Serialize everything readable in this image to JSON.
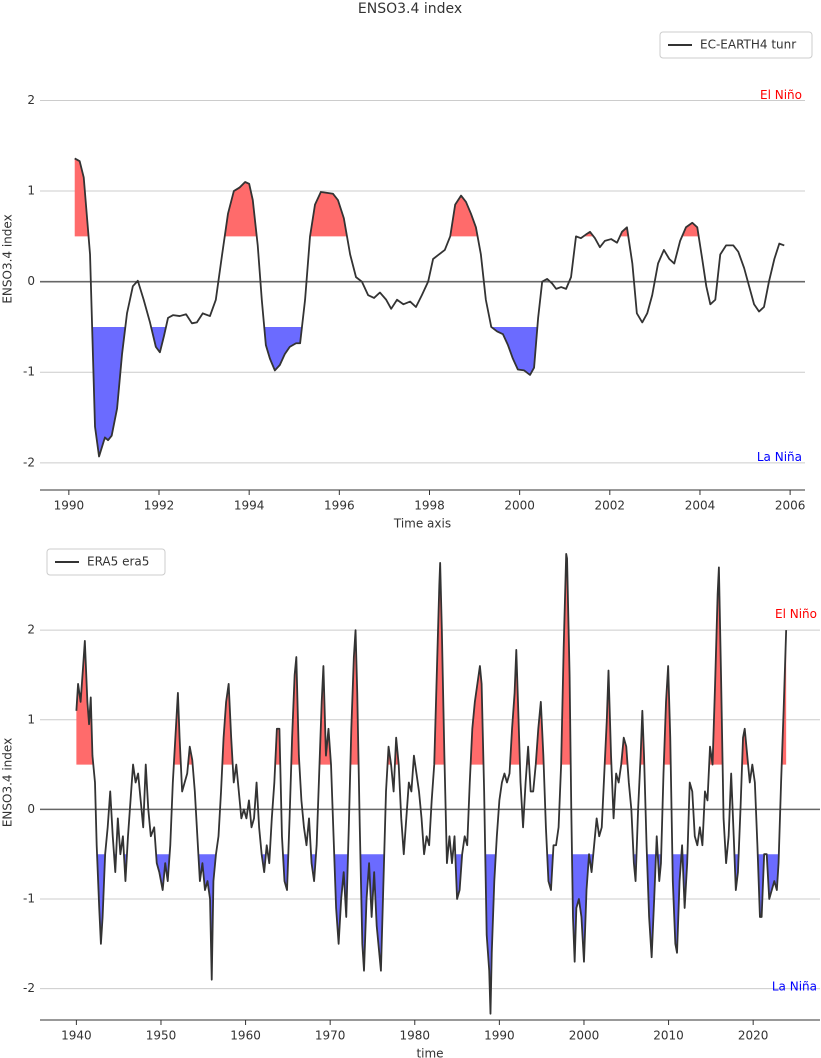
{
  "chart_data": [
    {
      "type": "line",
      "title": "ENSO3.4 index",
      "xlabel": "Time axis",
      "ylabel": "ENSO3.4 index",
      "xlim": [
        1989.36,
        2006.33
      ],
      "ylim": [
        -2.3,
        2.8
      ],
      "xticks": [
        1990,
        1992,
        1994,
        1996,
        1998,
        2000,
        2002,
        2004,
        2006
      ],
      "yticks": [
        -2,
        -1,
        0,
        1,
        2
      ],
      "grid": true,
      "legend": "upper right",
      "el_nino_threshold": 0.5,
      "la_nina_threshold": -0.5,
      "el_nino_color": "#ff6b6b",
      "la_nina_color": "#6b6bff",
      "annotations": [
        {
          "text": "El Niño",
          "color": "#ff0000"
        },
        {
          "text": "La Niña",
          "color": "#0000ff"
        }
      ],
      "x": [
        1990.13,
        1990.24,
        1990.33,
        1990.47,
        1990.58,
        1990.67,
        1990.8,
        1990.87,
        1990.95,
        1991.07,
        1991.18,
        1991.29,
        1991.42,
        1991.53,
        1991.66,
        1991.8,
        1991.93,
        1992.02,
        1992.11,
        1992.2,
        1992.31,
        1992.46,
        1992.6,
        1992.73,
        1992.84,
        1992.97,
        1993.13,
        1993.26,
        1993.4,
        1993.53,
        1993.66,
        1993.79,
        1993.91,
        1994.0,
        1994.08,
        1994.19,
        1994.28,
        1994.37,
        1994.46,
        1994.57,
        1994.68,
        1994.79,
        1994.9,
        1995.04,
        1995.13,
        1995.24,
        1995.35,
        1995.46,
        1995.59,
        1995.73,
        1995.86,
        1995.97,
        1996.1,
        1996.24,
        1996.37,
        1996.5,
        1996.64,
        1996.77,
        1996.9,
        1997.04,
        1997.15,
        1997.28,
        1997.42,
        1997.57,
        1997.7,
        1997.83,
        1997.97,
        1998.08,
        1998.21,
        1998.34,
        1998.46,
        1998.57,
        1998.7,
        1998.81,
        1998.92,
        1999.03,
        1999.14,
        1999.25,
        1999.37,
        1999.5,
        1999.63,
        1999.74,
        1999.85,
        1999.96,
        2000.1,
        2000.23,
        2000.32,
        2000.41,
        2000.5,
        2000.61,
        2000.72,
        2000.81,
        2000.92,
        2001.03,
        2001.14,
        2001.25,
        2001.36,
        2001.47,
        2001.56,
        2001.67,
        2001.78,
        2001.89,
        2002.03,
        2002.16,
        2002.27,
        2002.38,
        2002.5,
        2002.6,
        2002.72,
        2002.83,
        2002.94,
        2003.07,
        2003.2,
        2003.32,
        2003.43,
        2003.56,
        2003.69,
        2003.83,
        2003.94,
        2004.05,
        2004.14,
        2004.23,
        2004.34,
        2004.45,
        2004.58,
        2004.74,
        2004.85,
        2004.98,
        2005.09,
        2005.2,
        2005.31,
        2005.42,
        2005.53,
        2005.65,
        2005.76,
        2005.87
      ],
      "series": [
        {
          "name": "EC-EARTH4 tunr",
          "color": "#333333",
          "values": [
            1.36,
            1.33,
            1.15,
            0.3,
            -1.6,
            -1.93,
            -1.72,
            -1.75,
            -1.7,
            -1.4,
            -0.8,
            -0.35,
            -0.05,
            0.01,
            -0.2,
            -0.45,
            -0.72,
            -0.78,
            -0.6,
            -0.4,
            -0.37,
            -0.38,
            -0.36,
            -0.46,
            -0.45,
            -0.35,
            -0.38,
            -0.2,
            0.3,
            0.75,
            1.0,
            1.04,
            1.1,
            1.08,
            0.9,
            0.4,
            -0.2,
            -0.7,
            -0.85,
            -0.98,
            -0.92,
            -0.8,
            -0.72,
            -0.68,
            -0.68,
            -0.2,
            0.5,
            0.85,
            0.99,
            0.98,
            0.97,
            0.9,
            0.7,
            0.3,
            0.05,
            0.0,
            -0.15,
            -0.18,
            -0.12,
            -0.2,
            -0.3,
            -0.2,
            -0.25,
            -0.22,
            -0.28,
            -0.15,
            0.0,
            0.25,
            0.3,
            0.35,
            0.5,
            0.85,
            0.95,
            0.88,
            0.75,
            0.6,
            0.3,
            -0.2,
            -0.5,
            -0.55,
            -0.58,
            -0.7,
            -0.85,
            -0.97,
            -0.98,
            -1.03,
            -0.95,
            -0.4,
            0.0,
            0.03,
            -0.02,
            -0.08,
            -0.06,
            -0.08,
            0.05,
            0.5,
            0.48,
            0.52,
            0.55,
            0.48,
            0.38,
            0.45,
            0.47,
            0.43,
            0.55,
            0.6,
            0.2,
            -0.35,
            -0.45,
            -0.35,
            -0.15,
            0.2,
            0.35,
            0.25,
            0.2,
            0.45,
            0.6,
            0.65,
            0.6,
            0.25,
            -0.05,
            -0.25,
            -0.2,
            0.3,
            0.4,
            0.4,
            0.33,
            0.15,
            -0.05,
            -0.25,
            -0.33,
            -0.28,
            0.0,
            0.25,
            0.42,
            0.4
          ]
        }
      ]
    },
    {
      "type": "line",
      "xlabel": "time",
      "ylabel": "ENSO3.4 index",
      "xlim": [
        1935.7,
        2027.9
      ],
      "ylim": [
        -2.35,
        2.95
      ],
      "xticks": [
        1940,
        1950,
        1960,
        1970,
        1980,
        1990,
        2000,
        2010,
        2020
      ],
      "yticks": [
        -2,
        -1,
        0,
        1,
        2
      ],
      "grid": true,
      "legend": "upper left",
      "el_nino_threshold": 0.5,
      "la_nina_threshold": -0.5,
      "el_nino_color": "#ff6b6b",
      "la_nina_color": "#6b6bff",
      "annotations": [
        {
          "text": "El Niño",
          "color": "#ff0000"
        },
        {
          "text": "La Niña",
          "color": "#0000ff"
        }
      ],
      "x": [
        1940.0,
        1940.2,
        1940.5,
        1940.8,
        1941.0,
        1941.3,
        1941.5,
        1941.7,
        1941.9,
        1942.2,
        1942.4,
        1942.7,
        1942.9,
        1943.1,
        1943.4,
        1943.7,
        1944.0,
        1944.3,
        1944.6,
        1944.9,
        1945.2,
        1945.5,
        1945.8,
        1946.1,
        1946.4,
        1946.7,
        1947.0,
        1947.3,
        1947.6,
        1947.9,
        1948.2,
        1948.5,
        1948.8,
        1949.2,
        1949.5,
        1949.8,
        1950.2,
        1950.5,
        1950.8,
        1951.1,
        1951.4,
        1951.7,
        1952.0,
        1952.2,
        1952.5,
        1952.8,
        1953.1,
        1953.4,
        1953.7,
        1954.0,
        1954.3,
        1954.6,
        1954.9,
        1955.2,
        1955.5,
        1955.8,
        1956.0,
        1956.2,
        1956.5,
        1956.8,
        1957.1,
        1957.4,
        1957.7,
        1958.0,
        1958.3,
        1958.6,
        1958.9,
        1959.2,
        1959.5,
        1959.8,
        1960.1,
        1960.4,
        1960.7,
        1961.0,
        1961.3,
        1961.6,
        1961.9,
        1962.2,
        1962.5,
        1962.8,
        1963.1,
        1963.4,
        1963.7,
        1964.0,
        1964.3,
        1964.6,
        1964.9,
        1965.2,
        1965.5,
        1965.8,
        1966.0,
        1966.3,
        1966.6,
        1966.9,
        1967.2,
        1967.5,
        1967.8,
        1968.1,
        1968.4,
        1968.7,
        1969.0,
        1969.2,
        1969.5,
        1969.8,
        1970.1,
        1970.4,
        1970.7,
        1971.0,
        1971.3,
        1971.6,
        1971.9,
        1972.2,
        1972.5,
        1972.8,
        1973.0,
        1973.2,
        1973.5,
        1973.8,
        1974.0,
        1974.3,
        1974.6,
        1974.9,
        1975.2,
        1975.5,
        1975.8,
        1976.0,
        1976.3,
        1976.6,
        1976.9,
        1977.2,
        1977.5,
        1977.8,
        1978.1,
        1978.4,
        1978.7,
        1979.0,
        1979.3,
        1979.6,
        1979.9,
        1980.2,
        1980.5,
        1980.8,
        1981.1,
        1981.4,
        1981.7,
        1982.0,
        1982.3,
        1982.6,
        1982.9,
        1983.0,
        1983.2,
        1983.5,
        1983.8,
        1984.1,
        1984.4,
        1984.7,
        1985.0,
        1985.3,
        1985.6,
        1985.9,
        1986.2,
        1986.5,
        1986.8,
        1987.1,
        1987.4,
        1987.7,
        1987.9,
        1988.2,
        1988.5,
        1988.8,
        1988.95,
        1989.1,
        1989.4,
        1989.7,
        1990.0,
        1990.3,
        1990.6,
        1990.9,
        1991.2,
        1991.5,
        1991.8,
        1992.0,
        1992.2,
        1992.5,
        1992.8,
        1993.1,
        1993.4,
        1993.7,
        1994.0,
        1994.3,
        1994.6,
        1994.9,
        1995.2,
        1995.5,
        1995.8,
        1996.1,
        1996.4,
        1996.7,
        1997.0,
        1997.3,
        1997.6,
        1997.9,
        1998.0,
        1998.3,
        1998.5,
        1998.7,
        1998.9,
        1999.1,
        1999.4,
        1999.7,
        2000.0,
        2000.3,
        2000.6,
        2000.9,
        2001.2,
        2001.5,
        2001.8,
        2002.1,
        2002.4,
        2002.7,
        2002.9,
        2003.2,
        2003.5,
        2003.8,
        2004.1,
        2004.4,
        2004.7,
        2005.0,
        2005.3,
        2005.6,
        2005.9,
        2006.1,
        2006.4,
        2006.7,
        2006.9,
        2007.1,
        2007.4,
        2007.7,
        2008.0,
        2008.3,
        2008.6,
        2008.9,
        2009.1,
        2009.4,
        2009.7,
        2009.95,
        2010.2,
        2010.5,
        2010.8,
        2011.0,
        2011.3,
        2011.6,
        2011.9,
        2012.2,
        2012.5,
        2012.8,
        2013.1,
        2013.4,
        2013.7,
        2014.0,
        2014.3,
        2014.6,
        2014.9,
        2015.2,
        2015.5,
        2015.8,
        2015.95,
        2016.2,
        2016.5,
        2016.8,
        2017.1,
        2017.4,
        2017.7,
        2017.95,
        2018.2,
        2018.5,
        2018.8,
        2019.0,
        2019.3,
        2019.6,
        2019.9,
        2020.2,
        2020.5,
        2020.8,
        2021.0,
        2021.3,
        2021.6,
        2021.9,
        2022.2,
        2022.5,
        2022.8,
        2023.0,
        2023.3,
        2023.6,
        2023.9
      ],
      "series": [
        {
          "name": "ERA5 era5",
          "color": "#333333",
          "values": [
            1.1,
            1.4,
            1.2,
            1.6,
            1.88,
            1.2,
            0.95,
            1.25,
            0.6,
            0.3,
            -0.4,
            -1.1,
            -1.5,
            -1.2,
            -0.5,
            -0.2,
            0.2,
            -0.3,
            -0.7,
            -0.1,
            -0.5,
            -0.3,
            -0.8,
            -0.3,
            0.1,
            0.5,
            0.3,
            0.4,
            0.1,
            -0.2,
            0.5,
            0.0,
            -0.3,
            -0.2,
            -0.6,
            -0.7,
            -0.9,
            -0.6,
            -0.8,
            -0.4,
            0.3,
            0.8,
            1.3,
            0.8,
            0.2,
            0.3,
            0.4,
            0.7,
            0.55,
            0.2,
            -0.3,
            -0.8,
            -0.6,
            -0.9,
            -0.8,
            -1.0,
            -1.9,
            -0.8,
            -0.5,
            -0.3,
            0.2,
            0.8,
            1.2,
            1.4,
            0.8,
            0.3,
            0.5,
            0.2,
            -0.1,
            0.0,
            -0.1,
            0.1,
            -0.2,
            -0.1,
            0.3,
            -0.2,
            -0.5,
            -0.7,
            -0.4,
            -0.6,
            -0.1,
            0.3,
            0.9,
            0.9,
            -0.3,
            -0.8,
            -0.9,
            -0.1,
            0.8,
            1.5,
            1.7,
            0.6,
            0.1,
            -0.2,
            -0.4,
            -0.1,
            -0.6,
            -0.8,
            -0.4,
            0.4,
            1.2,
            1.6,
            0.6,
            0.9,
            0.5,
            -0.3,
            -1.1,
            -1.5,
            -1.0,
            -0.7,
            -1.2,
            -0.2,
            0.9,
            1.7,
            2.0,
            1.3,
            -0.2,
            -1.5,
            -1.8,
            -1.0,
            -0.6,
            -1.2,
            -0.7,
            -1.3,
            -1.6,
            -1.8,
            -0.8,
            0.2,
            0.7,
            0.5,
            0.2,
            0.8,
            0.5,
            -0.1,
            -0.5,
            -0.1,
            0.3,
            0.2,
            0.6,
            0.4,
            0.2,
            -0.1,
            -0.5,
            -0.3,
            -0.4,
            0.1,
            0.5,
            1.5,
            2.5,
            2.75,
            2.0,
            0.6,
            -0.6,
            -0.3,
            -0.6,
            -0.3,
            -1.0,
            -0.9,
            -0.5,
            -0.3,
            -0.4,
            0.3,
            0.9,
            1.2,
            1.4,
            1.6,
            1.4,
            0.2,
            -1.4,
            -1.8,
            -2.28,
            -1.6,
            -0.8,
            -0.3,
            0.1,
            0.3,
            0.4,
            0.3,
            0.4,
            0.9,
            1.3,
            1.78,
            1.2,
            0.3,
            -0.2,
            0.3,
            0.7,
            0.2,
            0.2,
            0.5,
            0.9,
            1.2,
            0.6,
            -0.2,
            -0.8,
            -0.9,
            -0.4,
            -0.4,
            -0.2,
            0.5,
            1.8,
            2.85,
            2.8,
            1.5,
            0.0,
            -1.2,
            -1.7,
            -1.1,
            -1.0,
            -1.2,
            -1.7,
            -0.9,
            -0.5,
            -0.7,
            -0.4,
            -0.1,
            -0.3,
            -0.2,
            0.4,
            1.0,
            1.55,
            0.6,
            -0.1,
            0.4,
            0.3,
            0.5,
            0.8,
            0.7,
            0.3,
            0.0,
            -0.6,
            -0.8,
            0.0,
            0.6,
            1.1,
            0.6,
            -0.4,
            -1.2,
            -1.65,
            -1.0,
            -0.3,
            -0.8,
            -0.6,
            0.4,
            1.2,
            1.6,
            0.8,
            -0.8,
            -1.5,
            -1.6,
            -0.8,
            -0.4,
            -1.1,
            -0.6,
            0.3,
            0.2,
            -0.3,
            -0.4,
            -0.2,
            -0.4,
            0.2,
            0.1,
            0.7,
            0.5,
            1.4,
            2.4,
            2.7,
            1.5,
            -0.1,
            -0.6,
            -0.3,
            0.4,
            -0.3,
            -0.9,
            -0.7,
            0.0,
            0.8,
            0.9,
            0.6,
            0.3,
            0.5,
            0.3,
            -0.4,
            -1.2,
            -1.2,
            -0.5,
            -0.5,
            -1.0,
            -0.9,
            -0.8,
            -0.9,
            -0.6,
            0.3,
            1.1,
            2.0
          ]
        }
      ]
    }
  ]
}
